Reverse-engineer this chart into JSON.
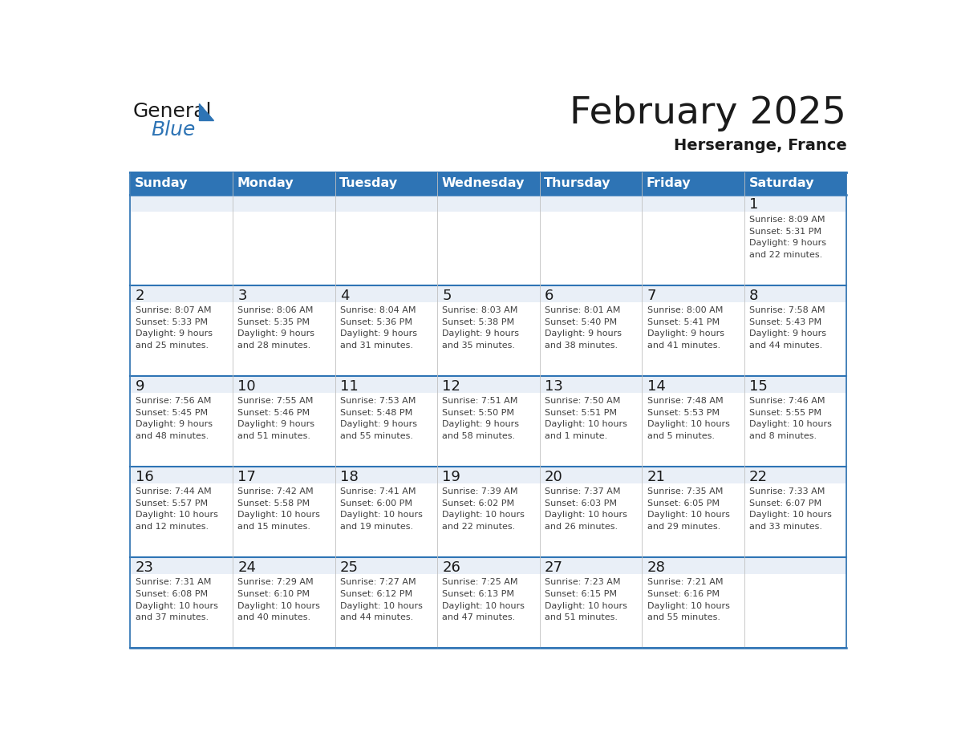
{
  "title": "February 2025",
  "subtitle": "Herserange, France",
  "header_bg": "#2E74B5",
  "header_text_color": "#FFFFFF",
  "row_top_bg": "#E9EFF7",
  "cell_bg": "#FFFFFF",
  "border_color_h": "#2E74B5",
  "border_color_v": "#C0C0C0",
  "day_number_color": "#1a1a1a",
  "info_text_color": "#404040",
  "title_color": "#1a1a1a",
  "subtitle_color": "#1a1a1a",
  "days_of_week": [
    "Sunday",
    "Monday",
    "Tuesday",
    "Wednesday",
    "Thursday",
    "Friday",
    "Saturday"
  ],
  "weeks": [
    [
      {
        "day": null,
        "info": null
      },
      {
        "day": null,
        "info": null
      },
      {
        "day": null,
        "info": null
      },
      {
        "day": null,
        "info": null
      },
      {
        "day": null,
        "info": null
      },
      {
        "day": null,
        "info": null
      },
      {
        "day": 1,
        "info": "Sunrise: 8:09 AM\nSunset: 5:31 PM\nDaylight: 9 hours\nand 22 minutes."
      }
    ],
    [
      {
        "day": 2,
        "info": "Sunrise: 8:07 AM\nSunset: 5:33 PM\nDaylight: 9 hours\nand 25 minutes."
      },
      {
        "day": 3,
        "info": "Sunrise: 8:06 AM\nSunset: 5:35 PM\nDaylight: 9 hours\nand 28 minutes."
      },
      {
        "day": 4,
        "info": "Sunrise: 8:04 AM\nSunset: 5:36 PM\nDaylight: 9 hours\nand 31 minutes."
      },
      {
        "day": 5,
        "info": "Sunrise: 8:03 AM\nSunset: 5:38 PM\nDaylight: 9 hours\nand 35 minutes."
      },
      {
        "day": 6,
        "info": "Sunrise: 8:01 AM\nSunset: 5:40 PM\nDaylight: 9 hours\nand 38 minutes."
      },
      {
        "day": 7,
        "info": "Sunrise: 8:00 AM\nSunset: 5:41 PM\nDaylight: 9 hours\nand 41 minutes."
      },
      {
        "day": 8,
        "info": "Sunrise: 7:58 AM\nSunset: 5:43 PM\nDaylight: 9 hours\nand 44 minutes."
      }
    ],
    [
      {
        "day": 9,
        "info": "Sunrise: 7:56 AM\nSunset: 5:45 PM\nDaylight: 9 hours\nand 48 minutes."
      },
      {
        "day": 10,
        "info": "Sunrise: 7:55 AM\nSunset: 5:46 PM\nDaylight: 9 hours\nand 51 minutes."
      },
      {
        "day": 11,
        "info": "Sunrise: 7:53 AM\nSunset: 5:48 PM\nDaylight: 9 hours\nand 55 minutes."
      },
      {
        "day": 12,
        "info": "Sunrise: 7:51 AM\nSunset: 5:50 PM\nDaylight: 9 hours\nand 58 minutes."
      },
      {
        "day": 13,
        "info": "Sunrise: 7:50 AM\nSunset: 5:51 PM\nDaylight: 10 hours\nand 1 minute."
      },
      {
        "day": 14,
        "info": "Sunrise: 7:48 AM\nSunset: 5:53 PM\nDaylight: 10 hours\nand 5 minutes."
      },
      {
        "day": 15,
        "info": "Sunrise: 7:46 AM\nSunset: 5:55 PM\nDaylight: 10 hours\nand 8 minutes."
      }
    ],
    [
      {
        "day": 16,
        "info": "Sunrise: 7:44 AM\nSunset: 5:57 PM\nDaylight: 10 hours\nand 12 minutes."
      },
      {
        "day": 17,
        "info": "Sunrise: 7:42 AM\nSunset: 5:58 PM\nDaylight: 10 hours\nand 15 minutes."
      },
      {
        "day": 18,
        "info": "Sunrise: 7:41 AM\nSunset: 6:00 PM\nDaylight: 10 hours\nand 19 minutes."
      },
      {
        "day": 19,
        "info": "Sunrise: 7:39 AM\nSunset: 6:02 PM\nDaylight: 10 hours\nand 22 minutes."
      },
      {
        "day": 20,
        "info": "Sunrise: 7:37 AM\nSunset: 6:03 PM\nDaylight: 10 hours\nand 26 minutes."
      },
      {
        "day": 21,
        "info": "Sunrise: 7:35 AM\nSunset: 6:05 PM\nDaylight: 10 hours\nand 29 minutes."
      },
      {
        "day": 22,
        "info": "Sunrise: 7:33 AM\nSunset: 6:07 PM\nDaylight: 10 hours\nand 33 minutes."
      }
    ],
    [
      {
        "day": 23,
        "info": "Sunrise: 7:31 AM\nSunset: 6:08 PM\nDaylight: 10 hours\nand 37 minutes."
      },
      {
        "day": 24,
        "info": "Sunrise: 7:29 AM\nSunset: 6:10 PM\nDaylight: 10 hours\nand 40 minutes."
      },
      {
        "day": 25,
        "info": "Sunrise: 7:27 AM\nSunset: 6:12 PM\nDaylight: 10 hours\nand 44 minutes."
      },
      {
        "day": 26,
        "info": "Sunrise: 7:25 AM\nSunset: 6:13 PM\nDaylight: 10 hours\nand 47 minutes."
      },
      {
        "day": 27,
        "info": "Sunrise: 7:23 AM\nSunset: 6:15 PM\nDaylight: 10 hours\nand 51 minutes."
      },
      {
        "day": 28,
        "info": "Sunrise: 7:21 AM\nSunset: 6:16 PM\nDaylight: 10 hours\nand 55 minutes."
      },
      {
        "day": null,
        "info": null
      }
    ]
  ],
  "logo_text1": "General",
  "logo_text2": "Blue",
  "logo_text1_color": "#1a1a1a",
  "logo_text2_color": "#2E74B5",
  "logo_triangle_color": "#2E74B5",
  "fig_width": 11.88,
  "fig_height": 9.18
}
